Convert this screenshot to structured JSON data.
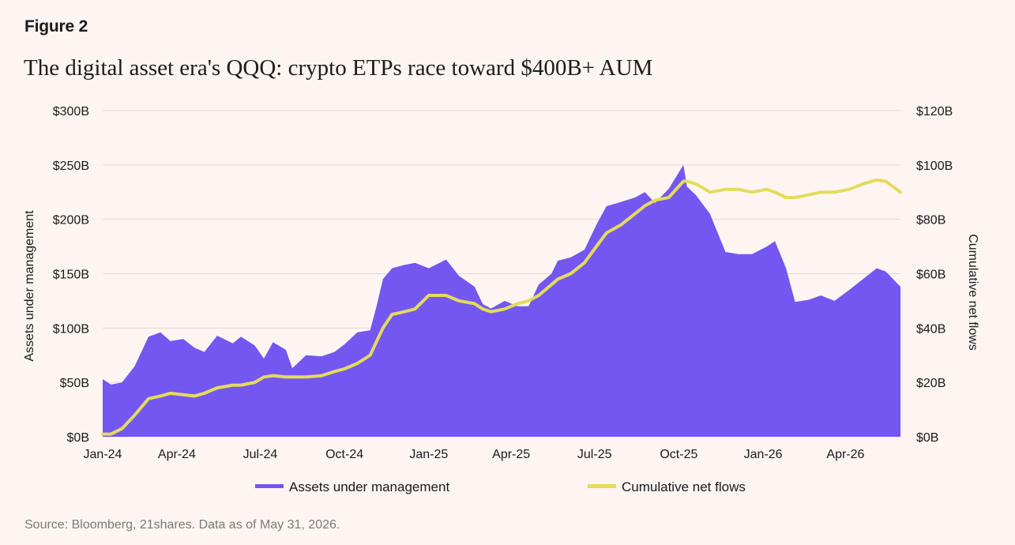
{
  "figure_label": "Figure 2",
  "title": "The digital asset era's QQQ: crypto ETPs race toward $400B+ AUM",
  "source": "Source: Bloomberg, 21shares. Data as of May 31, 2026.",
  "colors": {
    "background": "#fdf5f2",
    "aum_fill": "#7357f0",
    "flows_line": "#e4dc5a",
    "grid": "#e6d6d2"
  },
  "chart_data": {
    "type": "area",
    "title": "",
    "left_axis": {
      "label": "Assets under management",
      "ticks": [
        "$0B",
        "$50B",
        "$100B",
        "$150B",
        "$200B",
        "$250B",
        "$300B"
      ],
      "range": [
        0,
        300
      ],
      "unit": "B USD"
    },
    "right_axis": {
      "label": "Cumulative net flows",
      "ticks": [
        "$0B",
        "$20B",
        "$40B",
        "$60B",
        "$80B",
        "$100B",
        "$120B"
      ],
      "range": [
        0,
        120
      ],
      "unit": "B USD"
    },
    "x_axis": {
      "ticks": [
        "Jan-24",
        "Apr-24",
        "Jul-24",
        "Oct-24",
        "Jan-25",
        "Apr-25",
        "Jul-25",
        "Oct-25",
        "Jan-26",
        "Apr-26"
      ]
    },
    "grid": true,
    "legend_position": "bottom",
    "x": [
      "2024-01-11",
      "2024-01-20",
      "2024-02-01",
      "2024-02-15",
      "2024-03-01",
      "2024-03-14",
      "2024-03-25",
      "2024-04-08",
      "2024-04-20",
      "2024-05-01",
      "2024-05-15",
      "2024-06-01",
      "2024-06-10",
      "2024-06-25",
      "2024-07-05",
      "2024-07-15",
      "2024-07-29",
      "2024-08-05",
      "2024-08-20",
      "2024-09-06",
      "2024-09-20",
      "2024-10-01",
      "2024-10-15",
      "2024-10-29",
      "2024-11-05",
      "2024-11-12",
      "2024-11-22",
      "2024-12-05",
      "2024-12-17",
      "2025-01-01",
      "2025-01-20",
      "2025-02-03",
      "2025-02-20",
      "2025-03-01",
      "2025-03-10",
      "2025-03-25",
      "2025-04-08",
      "2025-04-20",
      "2025-05-01",
      "2025-05-15",
      "2025-05-22",
      "2025-06-05",
      "2025-06-20",
      "2025-07-03",
      "2025-07-14",
      "2025-07-30",
      "2025-08-14",
      "2025-08-25",
      "2025-09-05",
      "2025-09-20",
      "2025-10-06",
      "2025-10-10",
      "2025-10-20",
      "2025-11-04",
      "2025-11-21",
      "2025-12-05",
      "2025-12-20",
      "2026-01-05",
      "2026-01-14",
      "2026-01-26",
      "2026-02-05",
      "2026-02-20",
      "2026-03-05",
      "2026-03-20",
      "2026-04-05",
      "2026-04-20",
      "2026-05-05",
      "2026-05-15",
      "2026-05-31"
    ],
    "series": [
      {
        "name": "Assets under management",
        "axis": "left",
        "values": [
          53,
          48,
          50,
          65,
          92,
          96,
          88,
          90,
          82,
          78,
          93,
          86,
          92,
          84,
          72,
          87,
          80,
          63,
          75,
          74,
          78,
          85,
          96,
          98,
          120,
          145,
          155,
          158,
          160,
          155,
          163,
          148,
          138,
          122,
          118,
          125,
          120,
          120,
          140,
          150,
          162,
          165,
          172,
          195,
          212,
          216,
          220,
          225,
          215,
          228,
          250,
          230,
          222,
          205,
          170,
          168,
          168,
          175,
          180,
          155,
          124,
          126,
          130,
          125,
          135,
          145,
          155,
          152,
          138
        ]
      },
      {
        "name": "Cumulative net flows",
        "axis": "right",
        "values": [
          1,
          1,
          3,
          8,
          14,
          15,
          16,
          15.5,
          15,
          16,
          18,
          19,
          19,
          20,
          22,
          22.5,
          22,
          22,
          22,
          22.5,
          24,
          25,
          27,
          30,
          35,
          40,
          45,
          46,
          47,
          52,
          52,
          50,
          49,
          47,
          46,
          47,
          49,
          50,
          52,
          56,
          58,
          60,
          64,
          70,
          75,
          78,
          82,
          85,
          87,
          88,
          94,
          94,
          93,
          90,
          91,
          91,
          90,
          91,
          90,
          88,
          88,
          89,
          90,
          90,
          91,
          93,
          94.5,
          94,
          90
        ]
      }
    ]
  }
}
